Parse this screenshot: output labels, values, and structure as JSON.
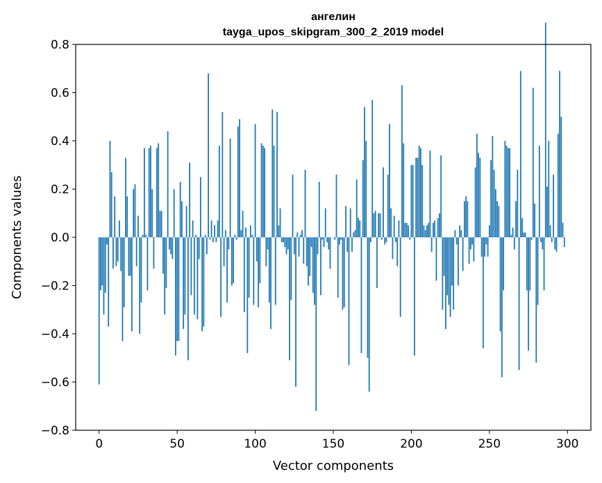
{
  "chart_data": {
    "type": "bar",
    "title": "ангелин",
    "subtitle": "tayga_upos_skipgram_300_2_2019 model",
    "xlabel": "Vector components",
    "ylabel": "Components values",
    "xlim": [
      -15,
      315
    ],
    "ylim": [
      -0.8,
      0.8
    ],
    "x_ticks": [
      0,
      50,
      100,
      150,
      200,
      250,
      300
    ],
    "y_ticks": [
      -0.8,
      -0.6,
      -0.4,
      -0.2,
      0.0,
      0.2,
      0.4,
      0.6,
      0.8
    ],
    "y_tick_labels": [
      "−0.8",
      "−0.6",
      "−0.4",
      "−0.2",
      "0.0",
      "0.2",
      "0.4",
      "0.6",
      "0.8"
    ],
    "bar_color": "#1f77b4",
    "series": [
      {
        "name": "ангелин",
        "values": [
          -0.61,
          -0.22,
          -0.2,
          -0.32,
          -0.23,
          -0.03,
          -0.37,
          0.4,
          0.27,
          -0.13,
          0.17,
          -0.12,
          -0.1,
          0.07,
          -0.14,
          -0.43,
          -0.29,
          0.33,
          0.17,
          -0.16,
          -0.16,
          -0.39,
          0.2,
          0.22,
          -0.12,
          0.09,
          -0.4,
          -0.27,
          0.01,
          0.37,
          0.01,
          -0.22,
          0.37,
          0.38,
          0.2,
          -0.13,
          0.0,
          0.37,
          0.39,
          0.11,
          0.11,
          -0.15,
          -0.32,
          -0.21,
          0.44,
          -0.05,
          -0.07,
          -0.09,
          0.2,
          -0.49,
          -0.43,
          -0.43,
          0.23,
          0.15,
          -0.38,
          -0.32,
          0.13,
          -0.51,
          0.31,
          -0.24,
          0.07,
          -0.32,
          0.01,
          -0.34,
          -0.09,
          0.25,
          -0.39,
          -0.37,
          0.01,
          -0.07,
          0.68,
          -0.01,
          0.07,
          -0.02,
          0.05,
          -0.02,
          0.07,
          0.38,
          -0.33,
          0.52,
          -0.12,
          0.03,
          -0.27,
          -0.05,
          0.41,
          -0.2,
          -0.19,
          0.01,
          -0.01,
          0.46,
          0.49,
          0.03,
          0.11,
          -0.31,
          0.04,
          -0.48,
          -0.25,
          0.05,
          0.01,
          -0.28,
          0.47,
          -0.1,
          -0.29,
          -0.19,
          0.39,
          0.38,
          0.37,
          -0.12,
          -0.05,
          -0.27,
          -0.38,
          0.53,
          0.38,
          -0.28,
          0.52,
          0.05,
          0.12,
          -0.02,
          -0.02,
          -0.04,
          -0.07,
          -0.05,
          -0.51,
          -0.26,
          0.26,
          -0.07,
          -0.62,
          0.02,
          -0.08,
          0.01,
          0.03,
          -0.11,
          0.28,
          -0.12,
          -0.2,
          -0.16,
          -0.04,
          -0.23,
          -0.28,
          -0.72,
          -0.07,
          0.23,
          -0.24,
          -0.01,
          -0.04,
          0.12,
          -0.02,
          -0.05,
          -0.13,
          0.0,
          0.0,
          -0.01,
          0.26,
          -0.25,
          -0.03,
          -0.01,
          -0.3,
          -0.29,
          0.13,
          -0.06,
          -0.53,
          0.12,
          -0.06,
          0.02,
          0.03,
          0.24,
          0.08,
          0.07,
          -0.48,
          0.32,
          0.54,
          0.4,
          -0.5,
          -0.64,
          -0.02,
          0.57,
          0.1,
          0.11,
          -0.21,
          0.1,
          0.1,
          -0.01,
          0.29,
          -0.03,
          -0.02,
          0.26,
          0.47,
          0.12,
          -0.09,
          0.09,
          -0.02,
          -0.12,
          0.07,
          -0.33,
          0.63,
          0.39,
          0.06,
          0.06,
          0.05,
          -0.01,
          0.3,
          0.3,
          -0.49,
          0.33,
          0.33,
          0.38,
          0.37,
          0.3,
          0.05,
          0.03,
          0.05,
          0.06,
          0.36,
          -0.06,
          0.06,
          0.07,
          -0.18,
          0.08,
          0.1,
          0.34,
          -0.3,
          -0.16,
          -0.38,
          -0.24,
          -0.28,
          -0.33,
          -0.2,
          -0.3,
          0.03,
          -0.03,
          -0.2,
          0.05,
          0.03,
          -0.14,
          0.15,
          0.17,
          0.15,
          -0.11,
          -0.05,
          -0.03,
          -0.1,
          0.29,
          0.43,
          0.35,
          0.33,
          -0.08,
          -0.46,
          -0.08,
          -0.03,
          -0.08,
          0.05,
          0.32,
          0.42,
          0.28,
          0.2,
          0.15,
          0.13,
          -0.39,
          -0.58,
          -0.22,
          0.4,
          0.38,
          0.37,
          0.37,
          0.01,
          0.04,
          -0.05,
          0.15,
          0.28,
          -0.55,
          0.69,
          0.08,
          0.02,
          0.02,
          -0.22,
          -0.47,
          -0.22,
          -0.01,
          0.62,
          0.14,
          -0.52,
          -0.28,
          0.38,
          -0.02,
          -0.05,
          -0.22,
          0.89,
          0.21,
          0.4,
          0.05,
          -0.02,
          0.26,
          -0.05,
          -0.06,
          0.43,
          0.69,
          0.5,
          0.06,
          -0.04
        ]
      }
    ]
  }
}
